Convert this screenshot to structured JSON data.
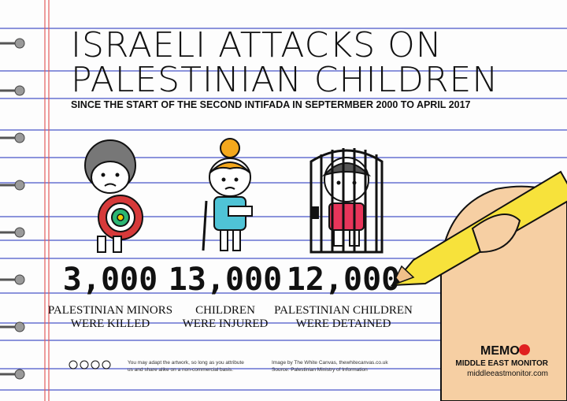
{
  "title_lines": [
    "ISRAELI ATTACKS ON",
    "PALESTINIAN CHILDREN"
  ],
  "subtitle": "SINCE THE START OF THE SECOND INTIFADA IN SEPTERMBER 2000 TO APRIL 2017",
  "stats": [
    {
      "number": "3,000",
      "caption": [
        "PALESTINIAN MINORS",
        "WERE KILLED"
      ]
    },
    {
      "number": "13,000",
      "caption": [
        "CHILDREN",
        "WERE INJURED"
      ]
    },
    {
      "number": "12,000",
      "caption": [
        "PALESTINIAN CHILDREN",
        "WERE DETAINED"
      ]
    }
  ],
  "footer": {
    "license": [
      "You may adapt the artwork, so long as you attribute",
      "us and share alike on a non-commercial basis."
    ],
    "credit": [
      "Image by The White Canvas, thewhitecanvas.co.uk",
      "Source: Palestinian Ministry of Information"
    ]
  },
  "logo": {
    "name": "MEMO",
    "full_name": "MIDDLE EAST MONITOR",
    "url": "middleeastmonitor.com"
  }
}
